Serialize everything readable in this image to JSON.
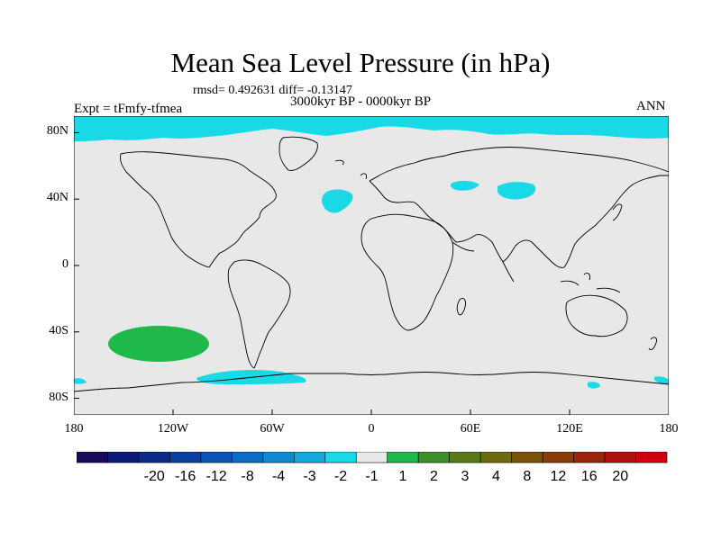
{
  "title": "Mean Sea Level Pressure (in hPa)",
  "stats": "rmsd= 0.492631 diff= -0.13147",
  "period": "3000kyr BP - 0000kyr BP",
  "experiment": "Expt = tFmfy-tfmea",
  "season": "ANN",
  "map": {
    "lon_ticks": [
      "180",
      "120W",
      "60W",
      "0",
      "60E",
      "120E",
      "180"
    ],
    "lat_ticks": [
      "80N",
      "40N",
      "0",
      "40S",
      "80S"
    ],
    "background_color": "#e8e8e8",
    "coast_color": "#000000"
  },
  "colorbar": {
    "colors": [
      "#1a0a5c",
      "#0c1a7a",
      "#0b2a8c",
      "#0a3fa0",
      "#0a52b4",
      "#0a6cc4",
      "#0f8ad2",
      "#14aadd",
      "#1ad9e6",
      "#e8e8e8",
      "#1fb84a",
      "#3c8f2a",
      "#5a7a1a",
      "#6e6a10",
      "#7a5208",
      "#8a3c0a",
      "#9a240c",
      "#b0100e",
      "#d0000e"
    ],
    "labels": [
      "-20",
      "-16",
      "-12",
      "-8",
      "-4",
      "-3",
      "-2",
      "-1",
      "1",
      "2",
      "3",
      "4",
      "8",
      "12",
      "16",
      "20"
    ]
  }
}
